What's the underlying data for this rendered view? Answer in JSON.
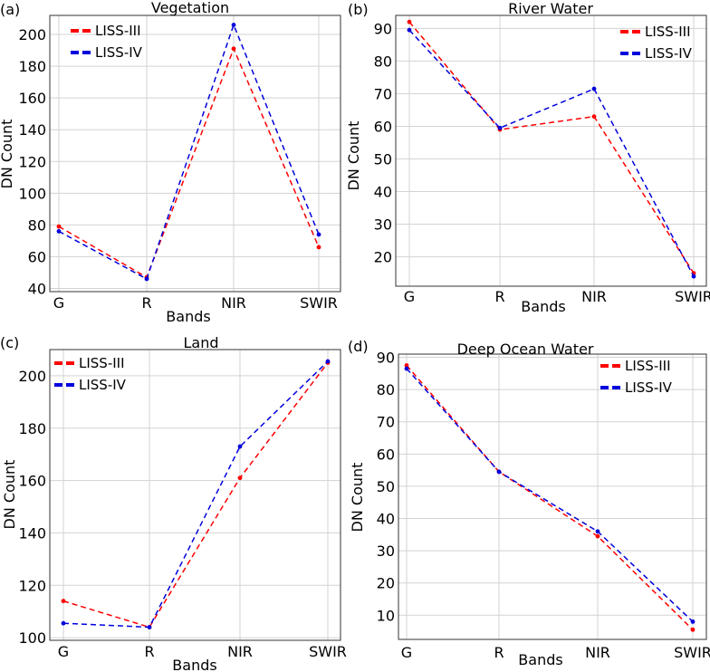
{
  "legend_labels": [
    "LISS-III",
    "LISS-IV"
  ],
  "colors": {
    "liss3": "#ff0000",
    "liss4": "#0000dd",
    "grid": "#d3d3d3"
  },
  "chart_data": [
    {
      "type": "line",
      "panel": "(a)",
      "title": "Vegetation",
      "xlabel": "Bands",
      "ylabel": "DN Count",
      "categories": [
        "G",
        "R",
        "NIR",
        "SWIR"
      ],
      "yticks": [
        40,
        60,
        80,
        100,
        120,
        140,
        160,
        180,
        200
      ],
      "ylim": [
        38,
        212
      ],
      "legend_position": "top-left",
      "series": [
        {
          "name": "LISS-III",
          "values": [
            79,
            47,
            191,
            66
          ]
        },
        {
          "name": "LISS-IV",
          "values": [
            76,
            46,
            206,
            74
          ]
        }
      ]
    },
    {
      "type": "line",
      "panel": "(b)",
      "title": "River Water",
      "xlabel": "Bands",
      "ylabel": "DN Count",
      "categories": [
        "G",
        "R",
        "NIR",
        "SWIR"
      ],
      "yticks": [
        20,
        30,
        40,
        50,
        60,
        70,
        80,
        90
      ],
      "ylim": [
        11,
        94
      ],
      "legend_position": "top-right",
      "series": [
        {
          "name": "LISS-III",
          "values": [
            92,
            59,
            63,
            15
          ]
        },
        {
          "name": "LISS-IV",
          "values": [
            89.5,
            59.5,
            71.5,
            14
          ]
        }
      ]
    },
    {
      "type": "line",
      "panel": "(c)",
      "title": "Land",
      "xlabel": "Bands",
      "ylabel": "DN Count",
      "categories": [
        "G",
        "R",
        "NIR",
        "SWIR"
      ],
      "yticks": [
        100,
        120,
        140,
        160,
        180,
        200
      ],
      "ylim": [
        99,
        210
      ],
      "legend_position": "top-left",
      "series": [
        {
          "name": "LISS-III",
          "values": [
            114,
            104,
            161,
            205
          ]
        },
        {
          "name": "LISS-IV",
          "values": [
            105.5,
            104,
            173,
            205.5
          ]
        }
      ]
    },
    {
      "type": "line",
      "panel": "(d)",
      "title": "Deep Ocean Water",
      "xlabel": "Bands",
      "ylabel": "DN Count",
      "categories": [
        "G",
        "R",
        "NIR",
        "SWIR"
      ],
      "yticks": [
        10,
        20,
        30,
        40,
        50,
        60,
        70,
        80,
        90
      ],
      "ylim": [
        2.5,
        91
      ],
      "legend_position": "top-right",
      "series": [
        {
          "name": "LISS-III",
          "values": [
            87.5,
            54.5,
            34.5,
            5.5
          ]
        },
        {
          "name": "LISS-IV",
          "values": [
            86.5,
            54.5,
            36,
            8
          ]
        }
      ]
    }
  ]
}
